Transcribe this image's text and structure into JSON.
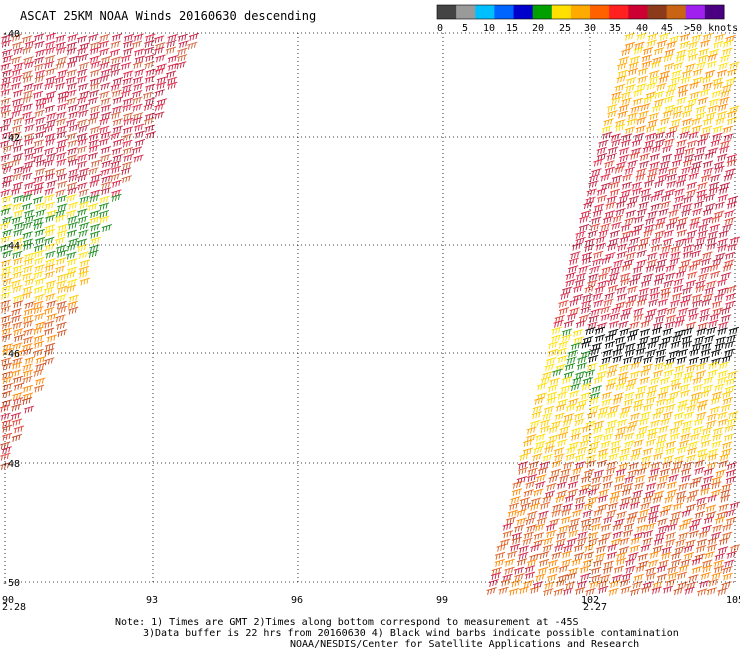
{
  "title": "ASCAT 25KM NOAA Winds 20160630 descending",
  "colorbar": {
    "labels": [
      "0",
      "5",
      "10",
      "15",
      "20",
      "25",
      "30",
      "35",
      "40",
      "45",
      ">50 knots"
    ],
    "colors": [
      "#444444",
      "#9a9a9a",
      "#00bfff",
      "#0064ff",
      "#0000cc",
      "#00a000",
      "#ffe000",
      "#ffaa00",
      "#ff6000",
      "#ff2020",
      "#cc0033",
      "#8b3a1a",
      "#c86414",
      "#a020f0",
      "#4b0082"
    ]
  },
  "map": {
    "lat_labels": [
      "-40",
      "-42",
      "-44",
      "-46",
      "-48",
      "-50"
    ],
    "lon_labels": [
      "90",
      "93",
      "96",
      "99",
      "102",
      "105"
    ],
    "time_labels": [
      "2.28",
      "2.27"
    ]
  },
  "notes": {
    "line1": "Note: 1) Times are GMT 2)Times along bottom correspond to measurement at -45S",
    "line2": "3)Data buffer is 22 hrs from 20160630 4) Black wind barbs indicate possible contamination",
    "line3": "NOAA/NESDIS/Center for Satellite Applications and Research"
  }
}
